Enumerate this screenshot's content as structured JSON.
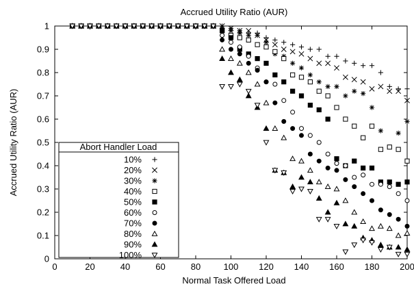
{
  "chart_data": {
    "type": "scatter",
    "title": "Accrued Utility Ratio (AUR)",
    "xlabel": "Normal Task Offered Load",
    "ylabel": "Accrued Utility Ratio (AUR)",
    "xlim": [
      0,
      200
    ],
    "ylim": [
      0,
      1
    ],
    "x_ticks": [
      "0",
      "20",
      "40",
      "60",
      "80",
      "100",
      "120",
      "140",
      "160",
      "180",
      "200"
    ],
    "y_ticks": [
      "0",
      "0.1",
      "0.2",
      "0.3",
      "0.4",
      "0.5",
      "0.6",
      "0.7",
      "0.8",
      "0.9",
      "1"
    ],
    "grid": false,
    "legend_title": "Abort Handler Load",
    "legend_position": "bottom-left",
    "x": [
      10,
      15,
      20,
      25,
      30,
      35,
      40,
      45,
      50,
      55,
      60,
      65,
      70,
      75,
      80,
      85,
      90,
      95,
      100,
      105,
      110,
      115,
      120,
      125,
      130,
      135,
      140,
      145,
      150,
      155,
      160,
      165,
      170,
      175,
      180,
      185,
      190,
      195,
      200
    ],
    "series": [
      {
        "name": "10%",
        "marker": "plus",
        "values": [
          1,
          1,
          1,
          1,
          1,
          1,
          1,
          1,
          1,
          1,
          1,
          1,
          1,
          1,
          1,
          1,
          1,
          1,
          0.99,
          0.98,
          0.97,
          0.97,
          0.95,
          0.94,
          0.93,
          0.92,
          0.91,
          0.9,
          0.9,
          0.87,
          0.87,
          0.85,
          0.84,
          0.83,
          0.83,
          0.8,
          0.74,
          0.73,
          0.73
        ]
      },
      {
        "name": "20%",
        "marker": "cross",
        "values": [
          1,
          1,
          1,
          1,
          1,
          1,
          1,
          1,
          1,
          1,
          1,
          1,
          1,
          1,
          1,
          1,
          1,
          1,
          0.99,
          0.98,
          0.98,
          0.96,
          0.94,
          0.92,
          0.9,
          0.89,
          0.88,
          0.86,
          0.84,
          0.84,
          0.82,
          0.78,
          0.77,
          0.76,
          0.73,
          0.74,
          0.72,
          0.72,
          0.68
        ]
      },
      {
        "name": "30%",
        "marker": "star",
        "values": [
          1,
          1,
          1,
          1,
          1,
          1,
          1,
          1,
          1,
          1,
          1,
          1,
          1,
          1,
          1,
          1,
          1,
          0.99,
          0.98,
          0.97,
          0.96,
          0.96,
          0.93,
          0.88,
          0.87,
          0.84,
          0.82,
          0.79,
          0.76,
          0.74,
          0.74,
          0.7,
          0.72,
          0.71,
          0.65,
          0.55,
          0.48,
          0.54,
          0.59
        ]
      },
      {
        "name": "40%",
        "marker": "square",
        "values": [
          1,
          1,
          1,
          1,
          1,
          1,
          1,
          1,
          1,
          1,
          1,
          1,
          1,
          1,
          1,
          1,
          1,
          0.98,
          0.96,
          0.95,
          0.94,
          0.92,
          0.91,
          0.89,
          0.86,
          0.79,
          0.78,
          0.76,
          0.72,
          0.7,
          0.65,
          0.6,
          0.57,
          0.52,
          0.57,
          0.47,
          0.48,
          0.47,
          0.42
        ]
      },
      {
        "name": "50%",
        "marker": "filled-square",
        "values": [
          1,
          1,
          1,
          1,
          1,
          1,
          1,
          1,
          1,
          1,
          1,
          1,
          1,
          1,
          1,
          1,
          1,
          0.98,
          0.95,
          0.9,
          0.88,
          0.86,
          0.84,
          0.79,
          0.76,
          0.72,
          0.7,
          0.66,
          0.64,
          0.6,
          0.43,
          0.4,
          0.42,
          0.39,
          0.39,
          0.33,
          0.33,
          0.32,
          0.33
        ]
      },
      {
        "name": "60%",
        "marker": "circle",
        "values": [
          1,
          1,
          1,
          1,
          1,
          1,
          1,
          1,
          1,
          1,
          1,
          1,
          1,
          1,
          1,
          1,
          1,
          0.96,
          0.93,
          0.91,
          0.87,
          0.82,
          0.76,
          0.75,
          0.68,
          0.63,
          0.56,
          0.53,
          0.5,
          0.45,
          0.41,
          0.4,
          0.35,
          0.36,
          0.32,
          0.32,
          0.31,
          0.28,
          0.25
        ]
      },
      {
        "name": "70%",
        "marker": "filled-circle",
        "values": [
          1,
          1,
          1,
          1,
          1,
          1,
          1,
          1,
          1,
          1,
          1,
          1,
          1,
          1,
          1,
          1,
          1,
          0.94,
          0.9,
          0.88,
          0.84,
          0.81,
          0.76,
          0.67,
          0.59,
          0.56,
          0.53,
          0.45,
          0.42,
          0.39,
          0.38,
          0.34,
          0.31,
          0.28,
          0.25,
          0.21,
          0.19,
          0.17,
          0.14
        ]
      },
      {
        "name": "80%",
        "marker": "triangle",
        "values": [
          1,
          1,
          1,
          1,
          1,
          1,
          1,
          1,
          1,
          1,
          1,
          1,
          1,
          1,
          1,
          1,
          1,
          0.9,
          0.86,
          0.84,
          0.8,
          0.75,
          0.67,
          0.56,
          0.52,
          0.43,
          0.42,
          0.38,
          0.33,
          0.31,
          0.3,
          0.25,
          0.2,
          0.16,
          0.13,
          0.14,
          0.13,
          0.1,
          0.11
        ]
      },
      {
        "name": "90%",
        "marker": "filled-triangle",
        "values": [
          1,
          1,
          1,
          1,
          1,
          1,
          1,
          1,
          1,
          1,
          1,
          1,
          1,
          1,
          1,
          1,
          1,
          0.86,
          0.8,
          0.77,
          0.7,
          0.65,
          0.56,
          0.38,
          0.37,
          0.31,
          0.35,
          0.33,
          0.26,
          0.2,
          0.24,
          0.15,
          0.14,
          0.09,
          0.08,
          0.06,
          0.05,
          0.05,
          0.04
        ]
      },
      {
        "name": "100%",
        "marker": "triangle-down",
        "values": [
          1,
          1,
          1,
          1,
          1,
          1,
          1,
          1,
          1,
          1,
          1,
          1,
          1,
          1,
          1,
          1,
          1,
          0.74,
          0.74,
          0.75,
          0.72,
          0.66,
          0.5,
          0.38,
          0.37,
          0.29,
          0.3,
          0.29,
          0.17,
          0.17,
          0.14,
          0.03,
          0.06,
          0.08,
          0.07,
          0.04,
          0.05,
          0.02,
          0.02
        ]
      }
    ]
  }
}
